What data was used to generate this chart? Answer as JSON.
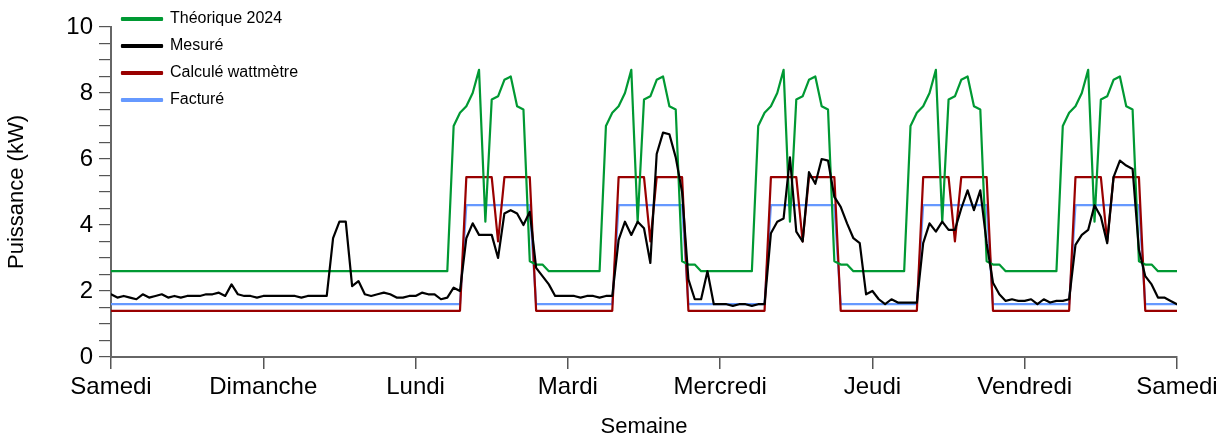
{
  "chart_data": {
    "type": "line",
    "xlabel": "Semaine",
    "ylabel": "Puissance (kW)",
    "categories": [
      "Samedi",
      null,
      null,
      null,
      null,
      null,
      null,
      null,
      null,
      null,
      null,
      null,
      null,
      null,
      null,
      null,
      null,
      null,
      null,
      null,
      null,
      null,
      null,
      null,
      "Dimanche",
      null,
      null,
      null,
      null,
      null,
      null,
      null,
      null,
      null,
      null,
      null,
      null,
      null,
      null,
      null,
      null,
      null,
      null,
      null,
      null,
      null,
      null,
      null,
      "Lundi",
      null,
      null,
      null,
      null,
      null,
      null,
      null,
      null,
      null,
      null,
      null,
      null,
      null,
      null,
      null,
      null,
      null,
      null,
      null,
      null,
      null,
      null,
      null,
      "Mardi",
      null,
      null,
      null,
      null,
      null,
      null,
      null,
      null,
      null,
      null,
      null,
      null,
      null,
      null,
      null,
      null,
      null,
      null,
      null,
      null,
      null,
      null,
      null,
      "Mercredi",
      null,
      null,
      null,
      null,
      null,
      null,
      null,
      null,
      null,
      null,
      null,
      null,
      null,
      null,
      null,
      null,
      null,
      null,
      null,
      null,
      null,
      null,
      null,
      "Jeudi",
      null,
      null,
      null,
      null,
      null,
      null,
      null,
      null,
      null,
      null,
      null,
      null,
      null,
      null,
      null,
      null,
      null,
      null,
      null,
      null,
      null,
      null,
      null,
      "Vendredi",
      null,
      null,
      null,
      null,
      null,
      null,
      null,
      null,
      null,
      null,
      null,
      null,
      null,
      null,
      null,
      null,
      null,
      null,
      null,
      null,
      null,
      null,
      null,
      "Samedi"
    ],
    "ylim": [
      0,
      10
    ],
    "yticks": [
      0,
      {
        "value": 0.5,
        "label": null
      },
      {
        "value": 1,
        "label": null
      },
      {
        "value": 1.5,
        "label": null
      },
      2,
      {
        "value": 2.5,
        "label": null
      },
      {
        "value": 3,
        "label": null
      },
      {
        "value": 3.5,
        "label": null
      },
      4,
      {
        "value": 4.5,
        "label": null
      },
      {
        "value": 5,
        "label": null
      },
      {
        "value": 5.5,
        "label": null
      },
      6,
      {
        "value": 6.5,
        "label": null
      },
      {
        "value": 7,
        "label": null
      },
      {
        "value": 7.5,
        "label": null
      },
      8,
      {
        "value": 8.5,
        "label": null
      },
      {
        "value": 9,
        "label": null
      },
      {
        "value": 9.5,
        "label": null
      },
      10
    ],
    "grid": false,
    "legend": "top left",
    "marker": "none",
    "line_style": "solid",
    "series": [
      {
        "name": "Théorique 2024",
        "color": "#009933",
        "values": [
          2.6,
          2.6,
          2.6,
          2.6,
          2.6,
          2.6,
          2.6,
          2.6,
          2.6,
          2.6,
          2.6,
          2.6,
          2.6,
          2.6,
          2.6,
          2.6,
          2.6,
          2.6,
          2.6,
          2.6,
          2.6,
          2.6,
          2.6,
          2.6,
          2.6,
          2.6,
          2.6,
          2.6,
          2.6,
          2.6,
          2.6,
          2.6,
          2.6,
          2.6,
          2.6,
          2.6,
          2.6,
          2.6,
          2.6,
          2.6,
          2.6,
          2.6,
          2.6,
          2.6,
          2.6,
          2.6,
          2.6,
          2.6,
          2.6,
          2.6,
          2.6,
          2.6,
          2.6,
          2.6,
          7.0,
          7.4,
          7.6,
          8.0,
          8.7,
          4.1,
          7.8,
          7.9,
          8.4,
          8.5,
          7.6,
          7.5,
          2.9,
          2.8,
          2.8,
          2.6,
          2.6,
          2.6,
          2.6,
          2.6,
          2.6,
          2.6,
          2.6,
          2.6,
          7.0,
          7.4,
          7.6,
          8.0,
          8.7,
          4.1,
          7.8,
          7.9,
          8.4,
          8.5,
          7.6,
          7.5,
          2.9,
          2.8,
          2.8,
          2.6,
          2.6,
          2.6,
          2.6,
          2.6,
          2.6,
          2.6,
          2.6,
          2.6,
          7.0,
          7.4,
          7.6,
          8.0,
          8.7,
          4.1,
          7.8,
          7.9,
          8.4,
          8.5,
          7.6,
          7.5,
          2.9,
          2.8,
          2.8,
          2.6,
          2.6,
          2.6,
          2.6,
          2.6,
          2.6,
          2.6,
          2.6,
          2.6,
          7.0,
          7.4,
          7.6,
          8.0,
          8.7,
          4.1,
          7.8,
          7.9,
          8.4,
          8.5,
          7.6,
          7.5,
          2.9,
          2.8,
          2.8,
          2.6,
          2.6,
          2.6,
          2.6,
          2.6,
          2.6,
          2.6,
          2.6,
          2.6,
          7.0,
          7.4,
          7.6,
          8.0,
          8.7,
          4.1,
          7.8,
          7.9,
          8.4,
          8.5,
          7.6,
          7.5,
          2.9,
          2.8,
          2.8,
          2.6,
          2.6,
          2.6,
          2.6
        ]
      },
      {
        "name": "Mesuré",
        "color": "#000000",
        "values": [
          1.9,
          1.8,
          1.85,
          1.8,
          1.75,
          1.9,
          1.8,
          1.85,
          1.9,
          1.8,
          1.85,
          1.8,
          1.85,
          1.85,
          1.85,
          1.9,
          1.9,
          1.95,
          1.85,
          2.2,
          1.9,
          1.85,
          1.85,
          1.8,
          1.85,
          1.85,
          1.85,
          1.85,
          1.85,
          1.85,
          1.8,
          1.85,
          1.85,
          1.85,
          1.85,
          3.6,
          4.1,
          4.1,
          2.15,
          2.3,
          1.9,
          1.85,
          1.9,
          1.95,
          1.9,
          1.8,
          1.8,
          1.85,
          1.85,
          1.95,
          1.9,
          1.9,
          1.75,
          1.8,
          2.1,
          2.0,
          3.6,
          4.05,
          3.7,
          3.7,
          3.7,
          3.0,
          4.35,
          4.45,
          4.35,
          4.0,
          4.4,
          2.7,
          2.45,
          2.2,
          1.85,
          1.85,
          1.85,
          1.85,
          1.8,
          1.85,
          1.85,
          1.8,
          1.85,
          1.85,
          3.55,
          4.1,
          3.7,
          4.1,
          3.9,
          2.85,
          6.15,
          6.8,
          6.75,
          6.05,
          5.0,
          2.35,
          1.75,
          1.75,
          2.6,
          1.6,
          1.6,
          1.6,
          1.55,
          1.6,
          1.6,
          1.55,
          1.6,
          1.6,
          3.75,
          4.1,
          4.2,
          6.05,
          3.8,
          3.5,
          5.6,
          5.25,
          6.0,
          5.95,
          4.85,
          4.55,
          4.05,
          3.6,
          3.45,
          1.9,
          2.0,
          1.75,
          1.6,
          1.75,
          1.65,
          1.65,
          1.65,
          1.65,
          3.45,
          4.05,
          3.8,
          4.1,
          3.85,
          3.85,
          4.5,
          5.05,
          4.45,
          5.05,
          3.45,
          2.25,
          1.9,
          1.7,
          1.75,
          1.7,
          1.7,
          1.75,
          1.6,
          1.75,
          1.65,
          1.7,
          1.7,
          1.75,
          3.4,
          3.7,
          3.85,
          4.6,
          4.25,
          3.45,
          5.45,
          5.95,
          5.8,
          5.7,
          3.25,
          2.45,
          2.2,
          1.8,
          1.8,
          1.7,
          1.6
        ]
      },
      {
        "name": "Calculé wattmètre",
        "color": "#990000",
        "values": [
          1.4,
          1.4,
          1.4,
          1.4,
          1.4,
          1.4,
          1.4,
          1.4,
          1.4,
          1.4,
          1.4,
          1.4,
          1.4,
          1.4,
          1.4,
          1.4,
          1.4,
          1.4,
          1.4,
          1.4,
          1.4,
          1.4,
          1.4,
          1.4,
          1.4,
          1.4,
          1.4,
          1.4,
          1.4,
          1.4,
          1.4,
          1.4,
          1.4,
          1.4,
          1.4,
          1.4,
          1.4,
          1.4,
          1.4,
          1.4,
          1.4,
          1.4,
          1.4,
          1.4,
          1.4,
          1.4,
          1.4,
          1.4,
          1.4,
          1.4,
          1.4,
          1.4,
          1.4,
          1.4,
          1.4,
          1.4,
          5.45,
          5.45,
          5.45,
          5.45,
          5.45,
          3.5,
          5.45,
          5.45,
          5.45,
          5.45,
          5.45,
          1.4,
          1.4,
          1.4,
          1.4,
          1.4,
          1.4,
          1.4,
          1.4,
          1.4,
          1.4,
          1.4,
          1.4,
          1.4,
          5.45,
          5.45,
          5.45,
          5.45,
          5.45,
          3.5,
          5.45,
          5.45,
          5.45,
          5.45,
          5.45,
          1.4,
          1.4,
          1.4,
          1.4,
          1.4,
          1.4,
          1.4,
          1.4,
          1.4,
          1.4,
          1.4,
          1.4,
          1.4,
          5.45,
          5.45,
          5.45,
          5.45,
          5.45,
          3.5,
          5.45,
          5.45,
          5.45,
          5.45,
          5.45,
          1.4,
          1.4,
          1.4,
          1.4,
          1.4,
          1.4,
          1.4,
          1.4,
          1.4,
          1.4,
          1.4,
          1.4,
          1.4,
          5.45,
          5.45,
          5.45,
          5.45,
          5.45,
          3.5,
          5.45,
          5.45,
          5.45,
          5.45,
          5.45,
          1.4,
          1.4,
          1.4,
          1.4,
          1.4,
          1.4,
          1.4,
          1.4,
          1.4,
          1.4,
          1.4,
          1.4,
          1.4,
          5.45,
          5.45,
          5.45,
          5.45,
          5.45,
          3.5,
          5.45,
          5.45,
          5.45,
          5.45,
          5.45,
          1.4,
          1.4,
          1.4,
          1.4,
          1.4,
          1.4
        ]
      },
      {
        "name": "Facturé",
        "color": "#6699ff",
        "values": [
          1.6,
          1.6,
          1.6,
          1.6,
          1.6,
          1.6,
          1.6,
          1.6,
          1.6,
          1.6,
          1.6,
          1.6,
          1.6,
          1.6,
          1.6,
          1.6,
          1.6,
          1.6,
          1.6,
          1.6,
          1.6,
          1.6,
          1.6,
          1.6,
          1.6,
          1.6,
          1.6,
          1.6,
          1.6,
          1.6,
          1.6,
          1.6,
          1.6,
          1.6,
          1.6,
          1.6,
          1.6,
          1.6,
          1.6,
          1.6,
          1.6,
          1.6,
          1.6,
          1.6,
          1.6,
          1.6,
          1.6,
          1.6,
          1.6,
          1.6,
          1.6,
          1.6,
          1.6,
          1.6,
          1.6,
          1.6,
          4.6,
          4.6,
          4.6,
          4.6,
          4.6,
          4.6,
          4.6,
          4.6,
          4.6,
          4.6,
          4.6,
          1.6,
          1.6,
          1.6,
          1.6,
          1.6,
          1.6,
          1.6,
          1.6,
          1.6,
          1.6,
          1.6,
          1.6,
          1.6,
          4.6,
          4.6,
          4.6,
          4.6,
          4.6,
          4.6,
          4.6,
          4.6,
          4.6,
          4.6,
          4.6,
          1.6,
          1.6,
          1.6,
          1.6,
          1.6,
          1.6,
          1.6,
          1.6,
          1.6,
          1.6,
          1.6,
          1.6,
          1.6,
          4.6,
          4.6,
          4.6,
          4.6,
          4.6,
          4.6,
          4.6,
          4.6,
          4.6,
          4.6,
          4.6,
          1.6,
          1.6,
          1.6,
          1.6,
          1.6,
          1.6,
          1.6,
          1.6,
          1.6,
          1.6,
          1.6,
          1.6,
          1.6,
          4.6,
          4.6,
          4.6,
          4.6,
          4.6,
          4.6,
          4.6,
          4.6,
          4.6,
          4.6,
          4.6,
          1.6,
          1.6,
          1.6,
          1.6,
          1.6,
          1.6,
          1.6,
          1.6,
          1.6,
          1.6,
          1.6,
          1.6,
          1.6,
          4.6,
          4.6,
          4.6,
          4.6,
          4.6,
          4.6,
          4.6,
          4.6,
          4.6,
          4.6,
          4.6,
          1.6,
          1.6,
          1.6,
          1.6,
          1.6,
          1.6
        ]
      }
    ]
  }
}
